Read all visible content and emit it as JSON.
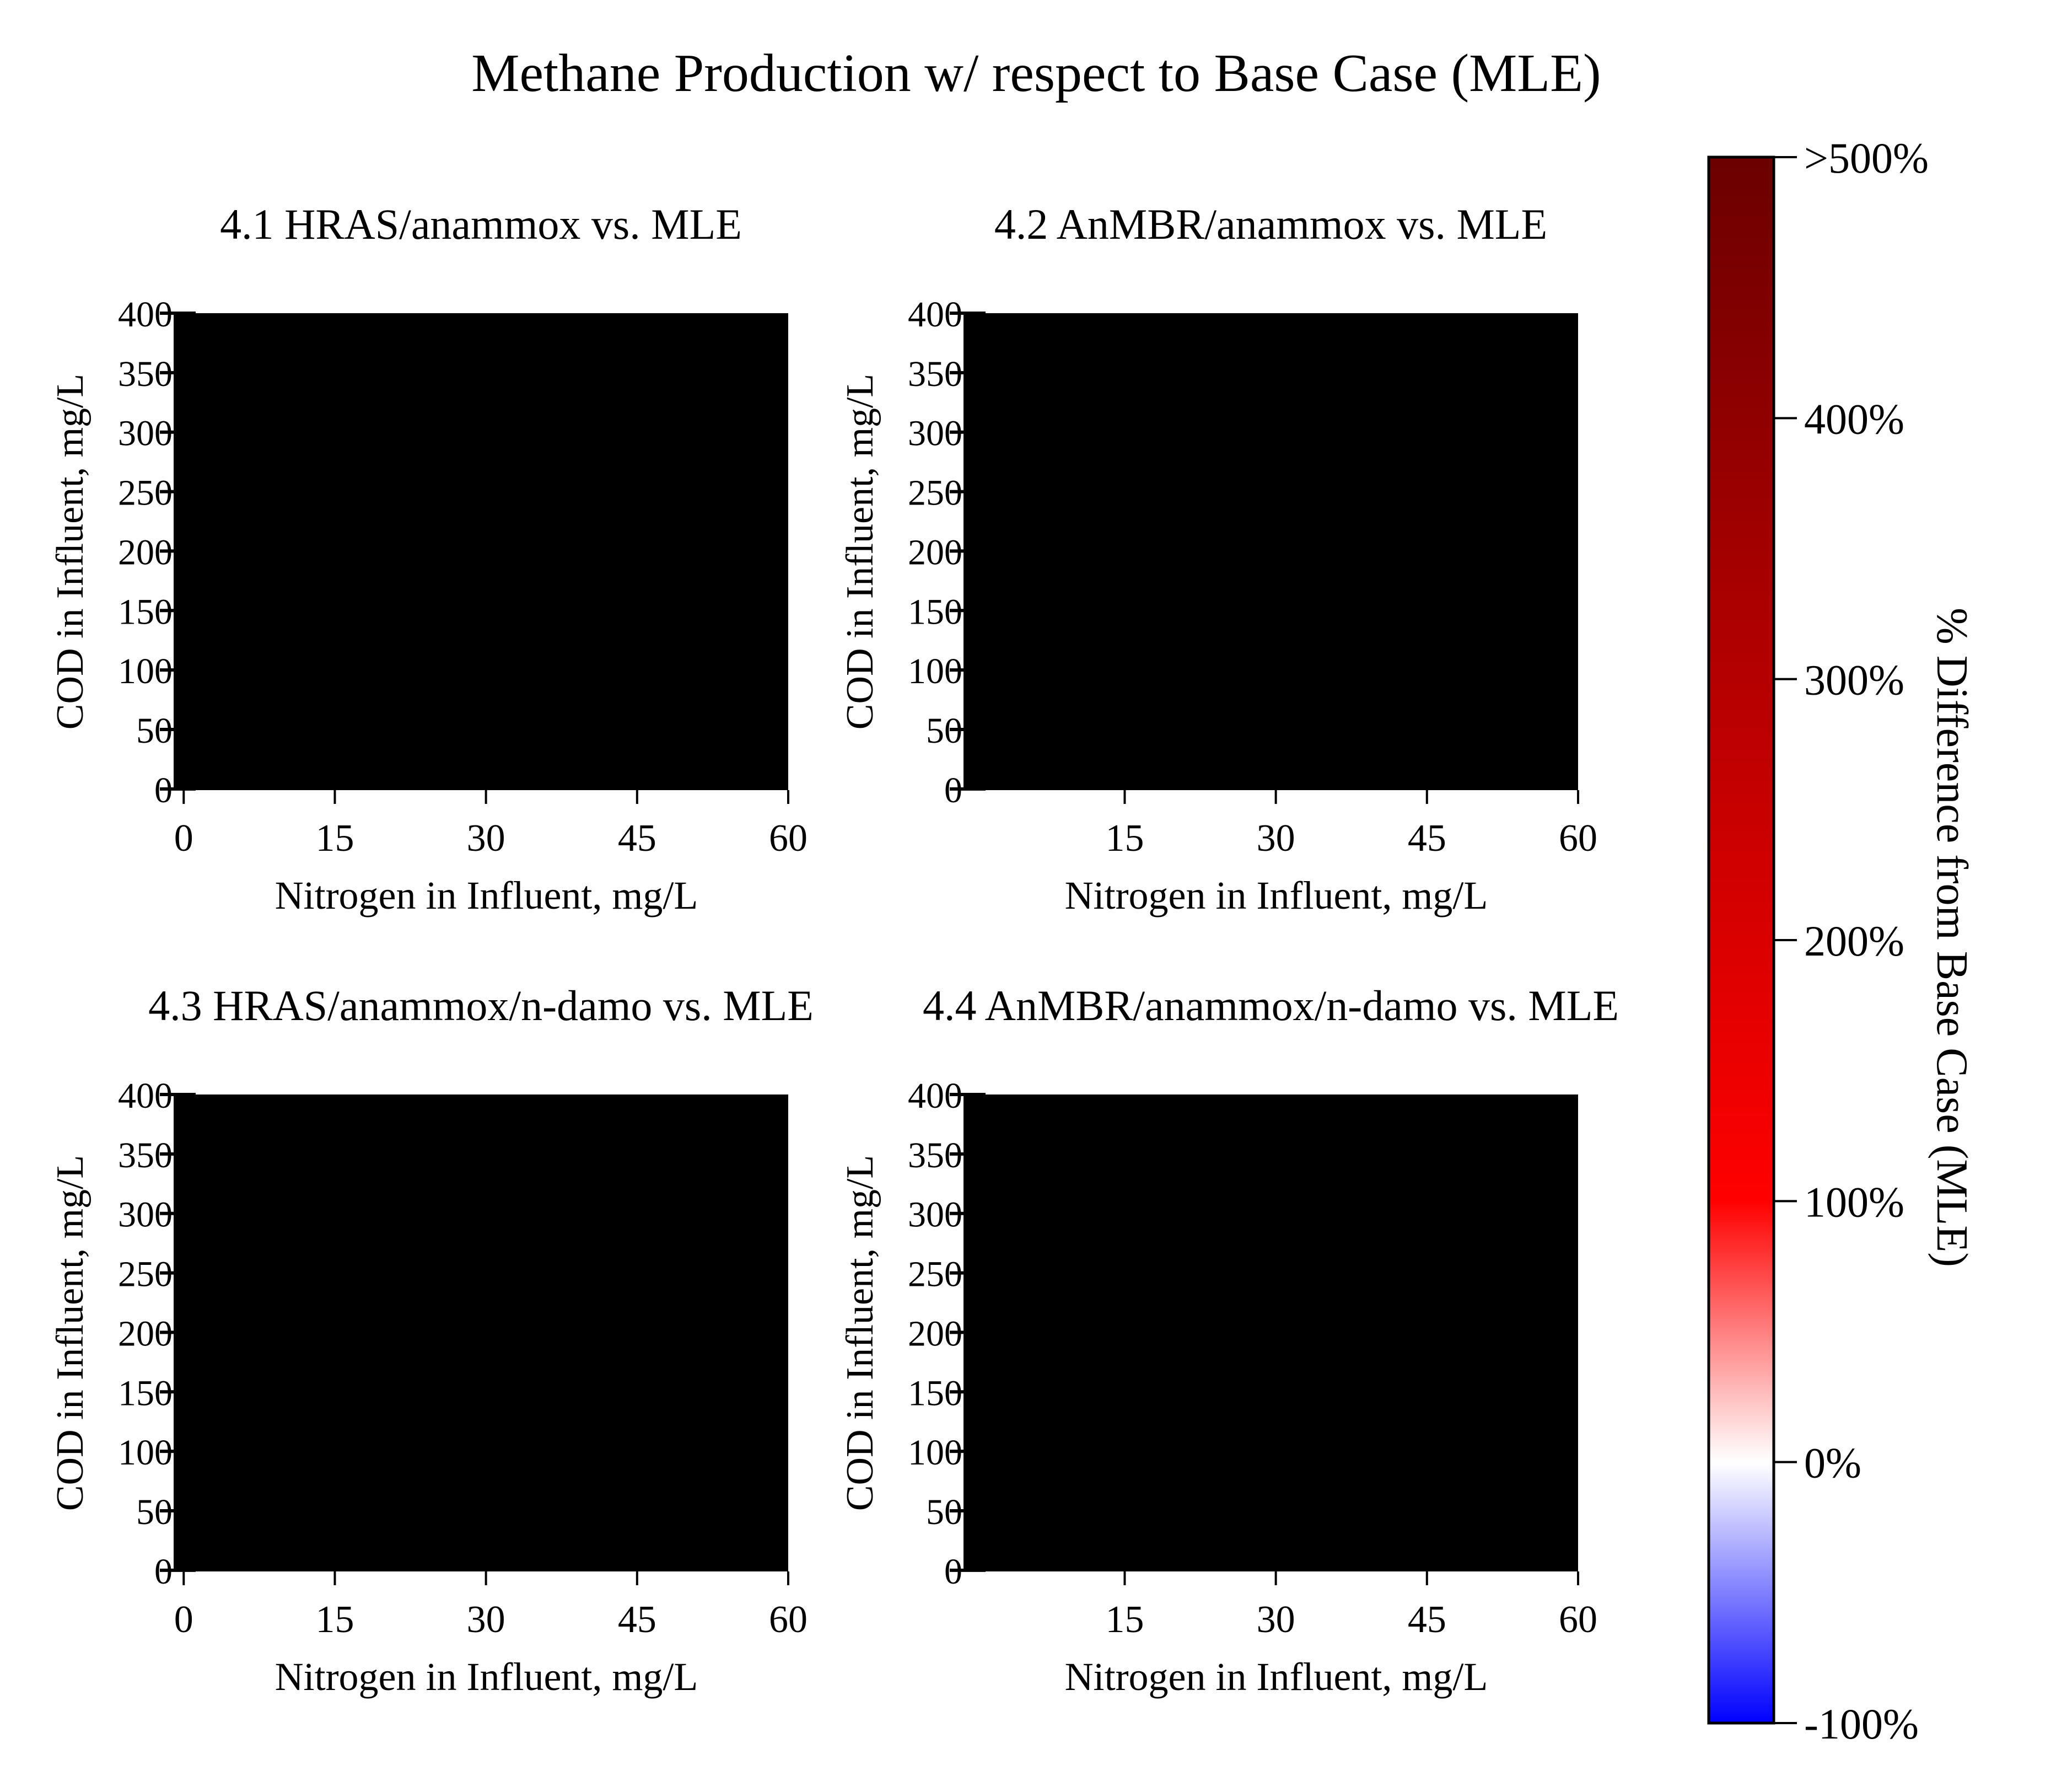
{
  "figure": {
    "title": "Methane Production w/ respect to Base Case (MLE)"
  },
  "chart_data": [
    {
      "type": "heatmap",
      "title": "4.1 HRAS/anammox vs. MLE",
      "xlabel": "Nitrogen in Influent, mg/L",
      "ylabel": "COD in Influent, mg/L",
      "xlim": [
        -1,
        60
      ],
      "ylim": [
        -1,
        400
      ],
      "xticks": [
        0,
        15,
        30,
        45,
        60
      ],
      "xtick_labels": [
        "0",
        "15",
        "30",
        "45",
        "60"
      ],
      "yticks": [
        0,
        50,
        100,
        150,
        200,
        250,
        300,
        350,
        400
      ],
      "ytick_labels": [
        "0",
        "50",
        "100",
        "150",
        "200",
        "250",
        "300",
        "350",
        "400"
      ],
      "fill_color": "#000000"
    },
    {
      "type": "heatmap",
      "title": "4.2 AnMBR/anammox vs. MLE",
      "xlabel": "Nitrogen in Influent, mg/L",
      "ylabel": "COD in Influent, mg/L",
      "xlim": [
        -1,
        60
      ],
      "ylim": [
        -1,
        400
      ],
      "xticks": [
        15,
        30,
        45,
        60
      ],
      "xtick_labels": [
        "15",
        "30",
        "45",
        "60"
      ],
      "yticks": [
        0,
        50,
        100,
        150,
        200,
        250,
        300,
        350,
        400
      ],
      "ytick_labels": [
        "0",
        "50",
        "100",
        "150",
        "200",
        "250",
        "300",
        "350",
        "400"
      ],
      "fill_color": "#000000"
    },
    {
      "type": "heatmap",
      "title": "4.3 HRAS/anammox/n-damo vs. MLE",
      "xlabel": "Nitrogen in Influent, mg/L",
      "ylabel": "COD in Influent, mg/L",
      "xlim": [
        -1,
        60
      ],
      "ylim": [
        -1,
        400
      ],
      "xticks": [
        0,
        15,
        30,
        45,
        60
      ],
      "xtick_labels": [
        "0",
        "15",
        "30",
        "45",
        "60"
      ],
      "yticks": [
        0,
        50,
        100,
        150,
        200,
        250,
        300,
        350,
        400
      ],
      "ytick_labels": [
        "0",
        "50",
        "100",
        "150",
        "200",
        "250",
        "300",
        "350",
        "400"
      ],
      "fill_color": "#000000"
    },
    {
      "type": "heatmap",
      "title": "4.4 AnMBR/anammox/n-damo vs. MLE",
      "xlabel": "Nitrogen in Influent, mg/L",
      "ylabel": "COD in Influent, mg/L",
      "xlim": [
        -1,
        60
      ],
      "ylim": [
        -1,
        400
      ],
      "xticks": [
        15,
        30,
        45,
        60
      ],
      "xtick_labels": [
        "15",
        "30",
        "45",
        "60"
      ],
      "yticks": [
        0,
        50,
        100,
        150,
        200,
        250,
        300,
        350,
        400
      ],
      "ytick_labels": [
        "0",
        "50",
        "100",
        "150",
        "200",
        "250",
        "300",
        "350",
        "400"
      ],
      "fill_color": "#000000"
    }
  ],
  "colorbar": {
    "label": "% Difference from Base Case (MLE)",
    "range": [
      -100,
      500
    ],
    "ticks": [
      -100,
      0,
      100,
      200,
      300,
      400,
      500
    ],
    "tick_labels": [
      "-100%",
      "0%",
      "100%",
      "200%",
      "300%",
      "400%",
      ">500%"
    ],
    "stops": [
      {
        "value": -100,
        "color": "#0000ff"
      },
      {
        "value": 0,
        "color": "#ffffff"
      },
      {
        "value": 100,
        "color": "#ff0000"
      },
      {
        "value": 500,
        "color": "#6b0000"
      }
    ]
  }
}
